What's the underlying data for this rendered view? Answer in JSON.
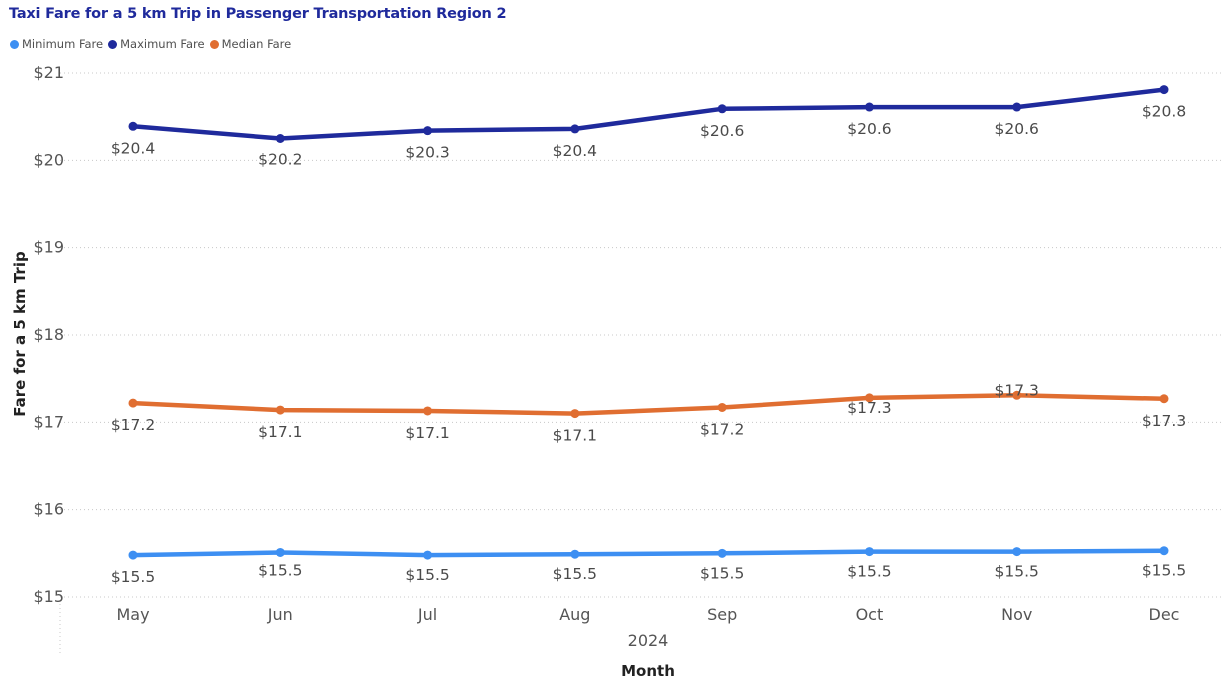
{
  "chart_data": {
    "type": "line",
    "title": "Taxi Fare for a 5 km Trip in Passenger Transportation Region 2",
    "categories": [
      "May",
      "Jun",
      "Jul",
      "Aug",
      "Sep",
      "Oct",
      "Nov",
      "Dec"
    ],
    "x_group_label": "2024",
    "xlabel": "Month",
    "ylabel": "Fare for a 5 km Trip",
    "ylim": [
      15,
      21
    ],
    "yticks": [
      15,
      16,
      17,
      18,
      19,
      20,
      21
    ],
    "ytick_labels": [
      "$15",
      "$16",
      "$17",
      "$18",
      "$19",
      "$20",
      "$21"
    ],
    "grid": true,
    "legend_position": "top-left",
    "series": [
      {
        "name": "Minimum Fare",
        "color": "#3d8ff2",
        "values": [
          15.48,
          15.51,
          15.48,
          15.49,
          15.5,
          15.52,
          15.52,
          15.53
        ],
        "data_labels": [
          "$15.5",
          "$15.5",
          "$15.5",
          "$15.5",
          "$15.5",
          "$15.5",
          "$15.5",
          "$15.5"
        ]
      },
      {
        "name": "Maximum Fare",
        "color": "#1f2a9c",
        "values": [
          20.39,
          20.25,
          20.34,
          20.36,
          20.59,
          20.61,
          20.61,
          20.81
        ],
        "data_labels": [
          "$20.4",
          "$20.2",
          "$20.3",
          "$20.4",
          "$20.6",
          "$20.6",
          "$20.6",
          "$20.8"
        ]
      },
      {
        "name": "Median Fare",
        "color": "#e06e31",
        "values": [
          17.22,
          17.14,
          17.13,
          17.1,
          17.17,
          17.28,
          17.31,
          17.27
        ],
        "data_labels": [
          "$17.2",
          "$17.1",
          "$17.1",
          "$17.1",
          "$17.2",
          "$17.3",
          "$17.3",
          "$17.3"
        ]
      }
    ]
  }
}
